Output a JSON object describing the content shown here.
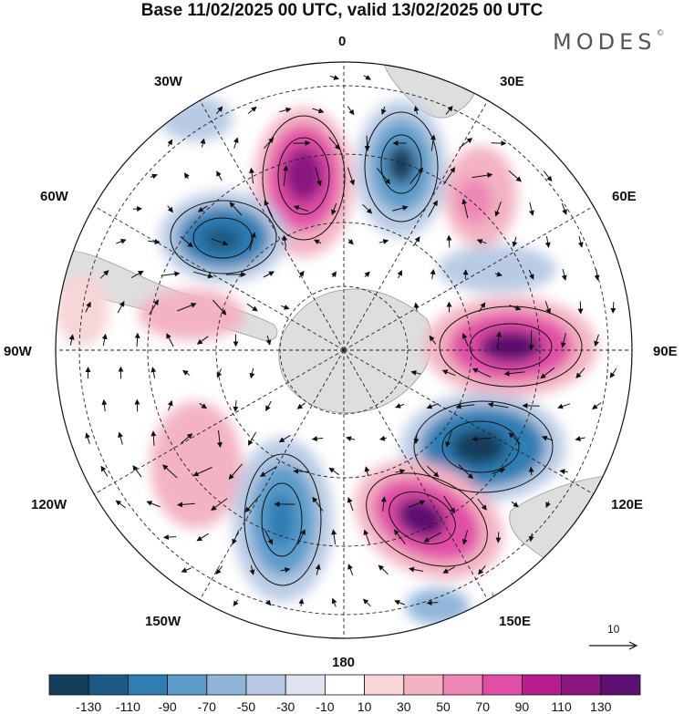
{
  "title": "Base 11/02/2025 00 UTC, valid 13/02/2025 00 UTC",
  "brand": {
    "name": "MODES",
    "mark": "©"
  },
  "longitude_labels": {
    "lon_0": "0",
    "lon_30e": "30E",
    "lon_60e": "60E",
    "lon_90e": "90E",
    "lon_120e": "120E",
    "lon_150e": "150E",
    "lon_180": "180",
    "lon_150w": "150W",
    "lon_120w": "120W",
    "lon_90w": "90W",
    "lon_60w": "60W",
    "lon_30w": "30W"
  },
  "reference_vector": {
    "label": "10"
  },
  "colorbar": {
    "tick_labels": [
      "-130",
      "-110",
      "-90",
      "-70",
      "-50",
      "-30",
      "-10",
      "10",
      "30",
      "50",
      "70",
      "90",
      "110",
      "130"
    ],
    "colors": [
      "#143e5b",
      "#1c5a85",
      "#2f7db3",
      "#5b9cca",
      "#90b5d9",
      "#b9cbe4",
      "#dfe3f0",
      "#ffffff",
      "#f7d6d8",
      "#f3b3c3",
      "#ee86b6",
      "#e14ea5",
      "#b81c8e",
      "#8a1480",
      "#5b0f70"
    ]
  },
  "map_colors": {
    "land": "#dedede",
    "coast": "#999999",
    "grid": "#222222",
    "arrow": "#111111"
  }
}
